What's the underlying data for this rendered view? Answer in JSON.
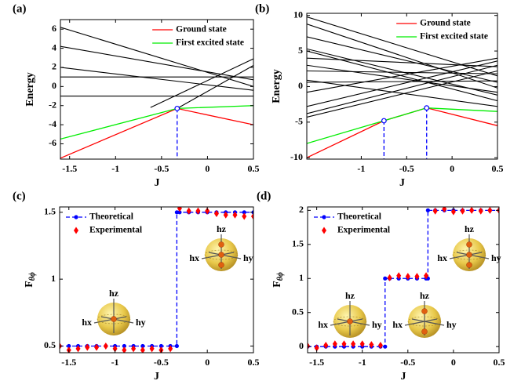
{
  "chart_data": [
    {
      "type": "line",
      "label": "(a)",
      "xlabel": "J",
      "ylabel": "Energy",
      "xlim": [
        -1.6,
        0.5
      ],
      "ylim": [
        -7.6,
        7.0
      ],
      "xticks": [
        -1.5,
        -1,
        -0.5,
        0,
        0.5
      ],
      "yticks": [
        -6,
        -4,
        -2,
        0,
        2,
        4,
        6
      ],
      "legend": "upper right",
      "series": [
        {
          "color": "#000000",
          "x": [
            -1.6,
            0.5
          ],
          "values": [
            6.2,
            0.0
          ]
        },
        {
          "color": "#000000",
          "x": [
            -1.6,
            0.5
          ],
          "values": [
            4.2,
            0.7
          ]
        },
        {
          "color": "#000000",
          "x": [
            -1.6,
            0.5
          ],
          "values": [
            2.0,
            -0.4
          ]
        },
        {
          "color": "#000000",
          "x": [
            -1.6,
            0.5
          ],
          "values": [
            1.0,
            1.0
          ]
        },
        {
          "color": "#000000",
          "x": [
            -1.6,
            0.5
          ],
          "values": [
            -1.0,
            -1.0
          ]
        },
        {
          "color": "#000000",
          "x": [
            -0.62,
            0.5
          ],
          "values": [
            -2.2,
            2.9
          ]
        },
        {
          "color": "#000000",
          "x": [
            -0.33,
            0.5
          ],
          "values": [
            -2.3,
            2.2
          ]
        },
        {
          "name": "Ground state",
          "color": "#ff0000",
          "x": [
            -1.6,
            -0.33,
            0.5
          ],
          "values": [
            -7.5,
            -2.3,
            -4.0
          ]
        },
        {
          "name": "First excited state",
          "color": "#00ee00",
          "x": [
            -1.6,
            -0.33,
            0.5
          ],
          "values": [
            -5.5,
            -2.3,
            -2.0
          ]
        }
      ],
      "crossings": {
        "color": "#0000ff",
        "x": [
          -0.33
        ],
        "values": [
          -2.3
        ]
      }
    },
    {
      "type": "line",
      "label": "(b)",
      "xlabel": "J",
      "ylabel": "Energy",
      "xlim": [
        -1.6,
        0.5
      ],
      "ylim": [
        -10.2,
        10.3
      ],
      "xticks": [
        -1,
        -0.5,
        0,
        0.5
      ],
      "yticks": [
        -10,
        -5,
        0,
        5,
        10
      ],
      "legend": "upper right",
      "series": [
        {
          "color": "#000000",
          "x": [
            -1.6,
            0.5
          ],
          "values": [
            9.8,
            1.5
          ]
        },
        {
          "color": "#000000",
          "x": [
            -1.6,
            0.5
          ],
          "values": [
            8.8,
            -0.2
          ]
        },
        {
          "color": "#000000",
          "x": [
            -1.6,
            0.5
          ],
          "values": [
            7.0,
            0.6
          ]
        },
        {
          "color": "#000000",
          "x": [
            -1.6,
            0.5
          ],
          "values": [
            5.3,
            -1.2
          ]
        },
        {
          "color": "#000000",
          "x": [
            -1.6,
            0.5
          ],
          "values": [
            5.0,
            -2.0
          ]
        },
        {
          "color": "#000000",
          "x": [
            -1.6,
            0.5
          ],
          "values": [
            4.0,
            2.8
          ]
        },
        {
          "color": "#000000",
          "x": [
            -1.6,
            0.5
          ],
          "values": [
            3.0,
            -0.8
          ]
        },
        {
          "color": "#000000",
          "x": [
            -1.6,
            0.5
          ],
          "values": [
            2.2,
            1.8
          ]
        },
        {
          "color": "#000000",
          "x": [
            -1.6,
            0.5
          ],
          "values": [
            0.9,
            -2.8
          ]
        },
        {
          "color": "#000000",
          "x": [
            -1.6,
            0.5
          ],
          "values": [
            0.6,
            0.8
          ]
        },
        {
          "color": "#000000",
          "x": [
            -1.6,
            0.5
          ],
          "values": [
            -0.8,
            4.0
          ]
        },
        {
          "color": "#000000",
          "x": [
            -1.6,
            0.5
          ],
          "values": [
            -2.8,
            3.6
          ]
        },
        {
          "color": "#000000",
          "x": [
            -1.6,
            0.5
          ],
          "values": [
            -3.8,
            3.0
          ]
        },
        {
          "color": "#000000",
          "x": [
            -1.6,
            0.5
          ],
          "values": [
            -4.3,
            2.2
          ]
        },
        {
          "name": "Ground state",
          "color": "#ff0000",
          "x": [
            -1.6,
            -0.75,
            -0.28,
            0.5
          ],
          "values": [
            -10,
            -4.8,
            -3.0,
            -5.5
          ]
        },
        {
          "name": "First excited state",
          "color": "#00ee00",
          "x": [
            -1.6,
            -0.75,
            -0.28,
            0.5
          ],
          "values": [
            -8,
            -4.8,
            -3.0,
            -3.5
          ]
        }
      ],
      "crossings": {
        "color": "#0000ff",
        "x": [
          -0.75,
          -0.28
        ],
        "values": [
          -4.8,
          -3.0
        ]
      }
    },
    {
      "type": "line",
      "label": "(c)",
      "xlabel": "J",
      "ylabel": "F",
      "ylabel_sub": "θϕ",
      "xlim": [
        -1.6,
        0.5
      ],
      "ylim": [
        0.45,
        1.54
      ],
      "xticks": [
        -1.5,
        -1,
        -0.5,
        0,
        0.5
      ],
      "yticks": [
        0.5,
        1,
        1.5
      ],
      "legend": "upper left",
      "series": [
        {
          "name": "Theoretical",
          "color": "#0000ff",
          "dash": true,
          "marker": "circle",
          "x": [
            -1.6,
            -1.5,
            -1.4,
            -1.3,
            -1.2,
            -1.1,
            -1.0,
            -0.9,
            -0.8,
            -0.7,
            -0.6,
            -0.5,
            -0.4,
            -0.33,
            -0.33,
            -0.3,
            -0.2,
            -0.1,
            0,
            0.1,
            0.2,
            0.3,
            0.4,
            0.5
          ],
          "values": [
            0.5,
            0.5,
            0.5,
            0.5,
            0.5,
            0.5,
            0.5,
            0.5,
            0.5,
            0.5,
            0.5,
            0.5,
            0.5,
            0.5,
            1.5,
            1.5,
            1.5,
            1.5,
            1.5,
            1.5,
            1.5,
            1.5,
            1.5,
            1.5
          ]
        },
        {
          "name": "Experimental",
          "color": "#ff0000",
          "line": false,
          "marker": "diamond",
          "x": [
            -1.6,
            -1.5,
            -1.4,
            -1.3,
            -1.2,
            -1.1,
            -1.0,
            -0.9,
            -0.8,
            -0.7,
            -0.6,
            -0.5,
            -0.4,
            -0.3,
            -0.2,
            -0.1,
            0,
            0.1,
            0.2,
            0.3,
            0.4,
            0.5
          ],
          "values": [
            0.5,
            0.47,
            0.48,
            0.49,
            0.49,
            0.5,
            0.48,
            0.47,
            0.48,
            0.47,
            0.48,
            0.47,
            0.48,
            1.53,
            1.51,
            1.51,
            1.51,
            1.49,
            1.48,
            1.48,
            1.47,
            1.47
          ]
        }
      ],
      "insets": [
        {
          "labels": [
            "hz",
            "hx",
            "hy"
          ]
        },
        {
          "labels": [
            "hz",
            "hx",
            "hy"
          ]
        }
      ]
    },
    {
      "type": "line",
      "label": "(d)",
      "xlabel": "J",
      "ylabel": "F",
      "ylabel_sub": "θϕ",
      "xlim": [
        -1.6,
        0.5
      ],
      "ylim": [
        -0.09,
        2.05
      ],
      "xticks": [
        -1.5,
        -1,
        -0.5,
        0,
        0.5
      ],
      "yticks": [
        0,
        0.5,
        1,
        1.5,
        2
      ],
      "legend": "upper left",
      "series": [
        {
          "name": "Theoretical",
          "color": "#0000ff",
          "dash": true,
          "marker": "circle",
          "x": [
            -1.6,
            -1.5,
            -1.4,
            -1.3,
            -1.2,
            -1.1,
            -1.0,
            -0.9,
            -0.8,
            -0.75,
            -0.75,
            -0.7,
            -0.6,
            -0.5,
            -0.4,
            -0.3,
            -0.28,
            -0.28,
            -0.2,
            -0.1,
            0,
            0.1,
            0.2,
            0.3,
            0.4,
            0.5
          ],
          "values": [
            0,
            0,
            0,
            0,
            0,
            0,
            0,
            0,
            0,
            0,
            1,
            1,
            1,
            1,
            1,
            1,
            1,
            2,
            2,
            2,
            2,
            2,
            2,
            2,
            2,
            2
          ]
        },
        {
          "name": "Experimental",
          "color": "#ff0000",
          "line": false,
          "marker": "diamond",
          "x": [
            -1.6,
            -1.5,
            -1.4,
            -1.3,
            -1.2,
            -1.1,
            -1.0,
            -0.9,
            -0.8,
            -0.7,
            -0.6,
            -0.5,
            -0.4,
            -0.3,
            -0.2,
            -0.1,
            0,
            0.1,
            0.2,
            0.3,
            0.4,
            0.5
          ],
          "values": [
            0.01,
            -0.02,
            0.02,
            0.04,
            0.04,
            0.04,
            0.04,
            0.03,
            0.02,
            1.01,
            1.04,
            1.03,
            1.03,
            1.04,
            1.99,
            2.02,
            1.98,
            1.99,
            2.0,
            1.99,
            2.0,
            2.0
          ]
        }
      ],
      "insets": [
        {
          "labels": [
            "hz",
            "hx",
            "hy"
          ]
        },
        {
          "labels": [
            "hz",
            "hx",
            "hy"
          ]
        },
        {
          "labels": [
            "hz",
            "hx",
            "hy"
          ]
        }
      ]
    }
  ]
}
